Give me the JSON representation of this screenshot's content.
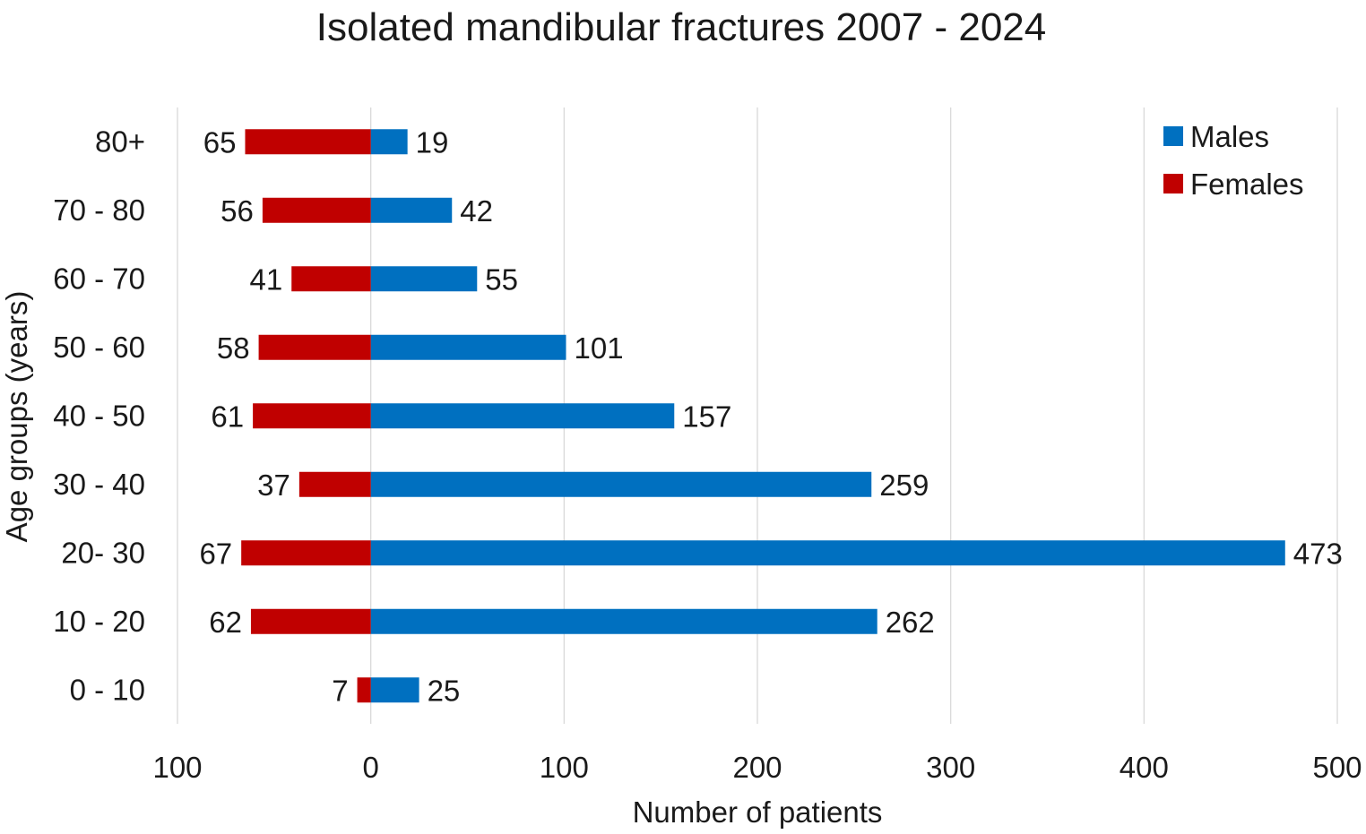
{
  "chart_data": {
    "type": "bar",
    "orientation": "horizontal",
    "layout": "diverging",
    "title": "Isolated mandibular fractures 2007 - 2024",
    "xlabel": "Number of patients",
    "ylabel": "Age groups (years)",
    "categories": [
      "0 - 10",
      "10 - 20",
      "20- 30",
      "30 - 40",
      "40 - 50",
      "50 - 60",
      "60 - 70",
      "70 - 80",
      "80+"
    ],
    "series": [
      {
        "name": "Males",
        "color": "#0070c0",
        "direction": "right",
        "values": [
          25,
          262,
          473,
          259,
          157,
          101,
          55,
          42,
          19
        ]
      },
      {
        "name": "Females",
        "color": "#c00000",
        "direction": "left",
        "values": [
          7,
          62,
          67,
          37,
          61,
          58,
          41,
          56,
          65
        ]
      }
    ],
    "xlim": [
      -100,
      500
    ],
    "xticks": [
      -100,
      0,
      100,
      200,
      300,
      400,
      500
    ],
    "xtick_labels": [
      "100",
      "0",
      "100",
      "200",
      "300",
      "400",
      "500"
    ],
    "grid": "vertical",
    "legend": "top-right"
  }
}
